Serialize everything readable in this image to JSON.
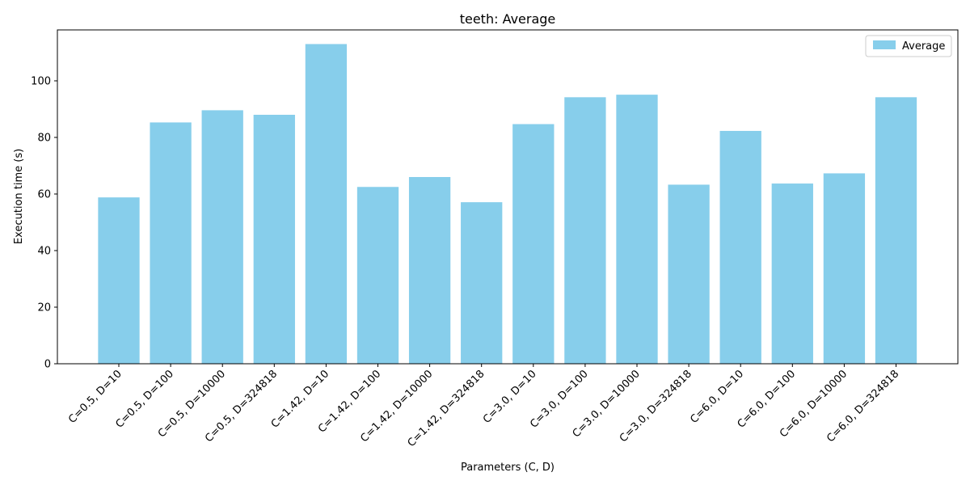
{
  "chart_data": {
    "type": "bar",
    "title": "teeth: Average",
    "xlabel": "Parameters (C, D)",
    "ylabel": "Execution time (s)",
    "ylim": [
      0,
      118
    ],
    "yticks": [
      0,
      20,
      40,
      60,
      80,
      100
    ],
    "grid": false,
    "legend_position": "top-right",
    "bar_color": "#87ceeb",
    "categories": [
      "C=0.5, D=10",
      "C=0.5, D=100",
      "C=0.5, D=10000",
      "C=0.5, D=324818",
      "C=1.42, D=10",
      "C=1.42, D=100",
      "C=1.42, D=10000",
      "C=1.42, D=324818",
      "C=3.0, D=10",
      "C=3.0, D=100",
      "C=3.0, D=10000",
      "C=3.0, D=324818",
      "C=6.0, D=10",
      "C=6.0, D=100",
      "C=6.0, D=10000",
      "C=6.0, D=324818"
    ],
    "series": [
      {
        "name": "Average",
        "values": [
          58.8,
          85.3,
          89.6,
          88.0,
          113.0,
          62.5,
          66.0,
          57.1,
          84.7,
          94.2,
          95.1,
          63.3,
          82.3,
          63.7,
          67.3,
          94.2
        ]
      }
    ]
  }
}
